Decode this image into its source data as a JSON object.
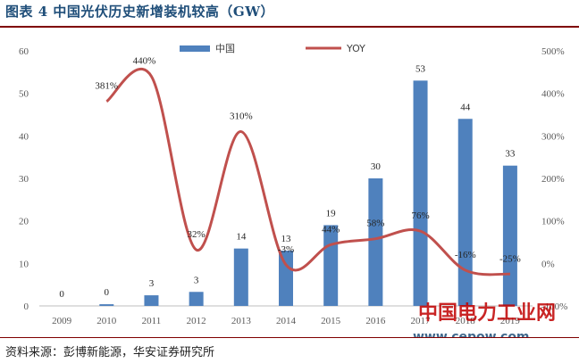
{
  "title": "图表 4 中国光伏历史新增装机较高（GW）",
  "source": "资料来源：彭博新能源，华安证券研究所",
  "watermark": {
    "line1": "中国电力工业网",
    "line2": "www.cepow.com"
  },
  "colors": {
    "bar": "#4f81bd",
    "line": "#c0504d",
    "title": "#1f4e79",
    "rule": "#7f0000"
  },
  "chart_data": {
    "type": "bar",
    "categories": [
      "2009",
      "2010",
      "2011",
      "2012",
      "2013",
      "2014",
      "2015",
      "2016",
      "2017",
      "2018",
      "2019"
    ],
    "series": [
      {
        "name": "中国",
        "type": "bar",
        "axis": "left",
        "values": [
          0,
          0.4,
          2.5,
          3.3,
          13.5,
          13,
          19,
          30,
          53,
          44,
          33
        ],
        "labels": [
          "0",
          "0",
          "3",
          "3",
          "14",
          "13",
          "19",
          "30",
          "53",
          "44",
          "33"
        ]
      },
      {
        "name": "YOY",
        "type": "line",
        "axis": "right",
        "values": [
          null,
          381,
          440,
          32,
          310,
          -3,
          44,
          58,
          76,
          -16,
          -25
        ],
        "labels": [
          "",
          "381%",
          "440%",
          "32%",
          "310%",
          "-3%",
          "44%",
          "58%",
          "76%",
          "-16%",
          "-25%"
        ]
      }
    ],
    "y_left": {
      "min": 0,
      "max": 60,
      "ticks": [
        0,
        10,
        20,
        30,
        40,
        50,
        60
      ]
    },
    "y_right": {
      "min": -100,
      "max": 500,
      "ticks": [
        -100,
        0,
        100,
        200,
        300,
        400,
        500
      ],
      "tick_labels": [
        "-100%",
        "0%",
        "100%",
        "200%",
        "300%",
        "400%",
        "500%"
      ]
    },
    "legend_position": "top"
  }
}
